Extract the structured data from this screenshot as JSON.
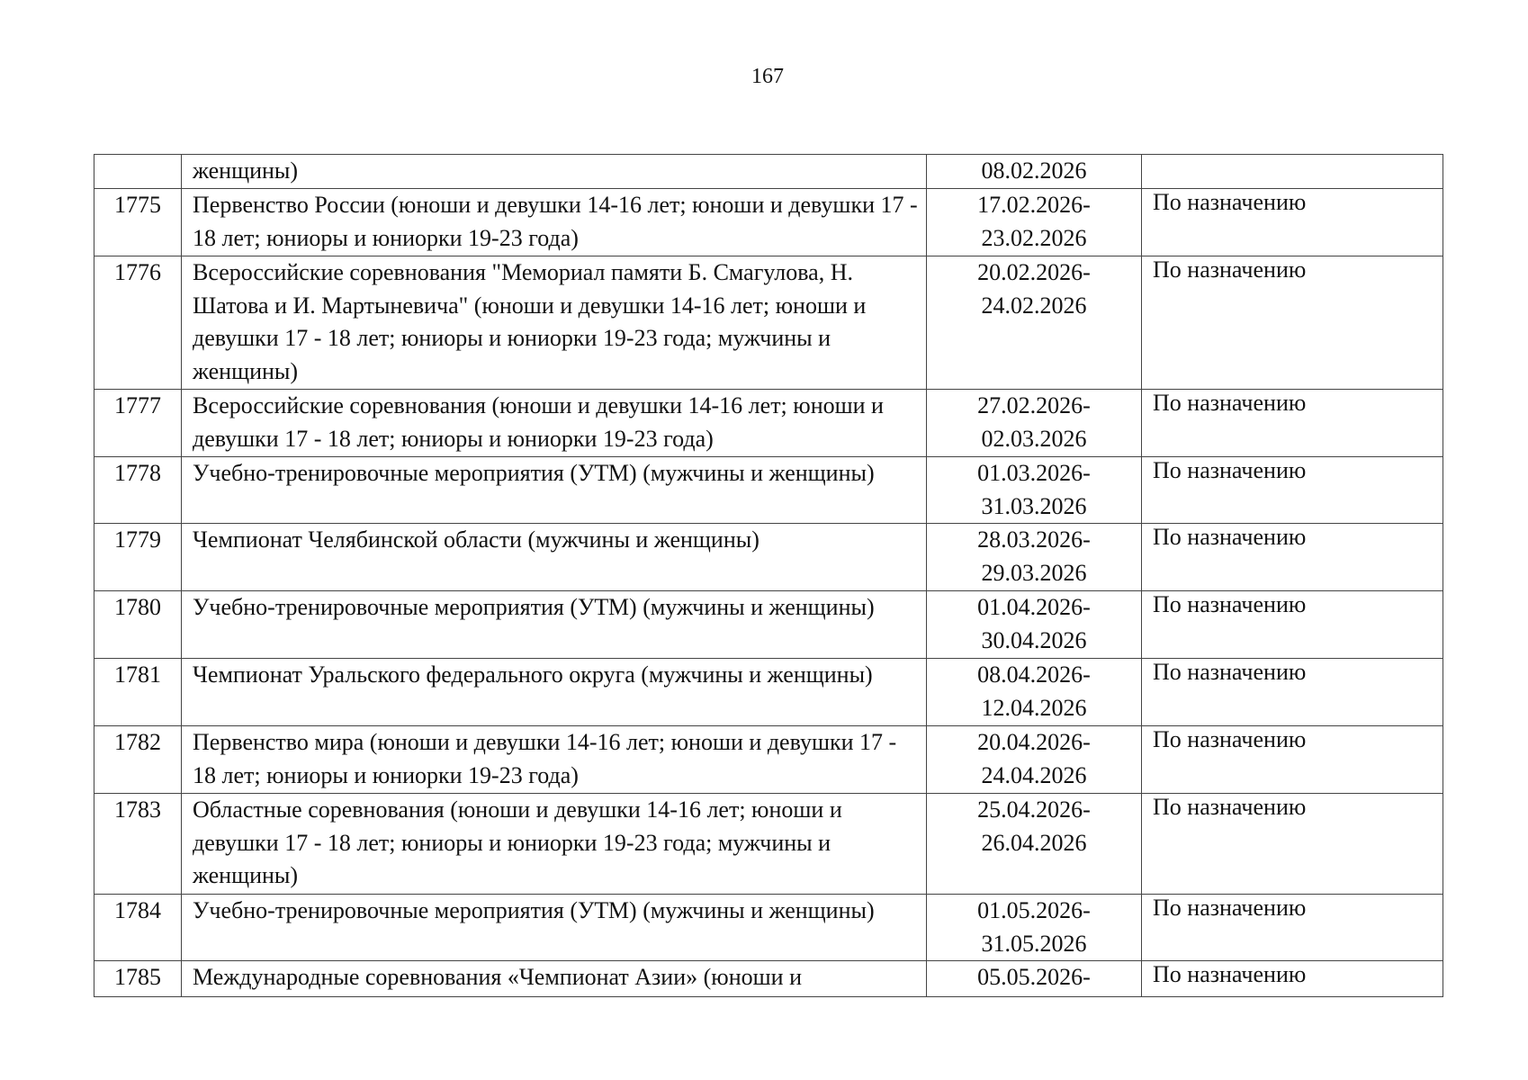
{
  "page_number": "167",
  "continuation_row": {
    "name": "женщины)",
    "date_end": "08.02.2026",
    "responsible": ""
  },
  "rows": [
    {
      "num": "1775",
      "name": "Первенство России (юноши и девушки 14-16 лет; юноши и девушки 17 - 18 лет; юниоры и юниорки 19-23 года)",
      "date_start": "17.02.2026-",
      "date_end": "23.02.2026",
      "responsible": "По назначению"
    },
    {
      "num": "1776",
      "name": "Всероссийские соревнования \"Мемориал памяти Б. Смагулова, Н. Шатова и И. Мартыневича\" (юноши и девушки 14-16 лет; юноши и девушки 17 - 18 лет; юниоры и юниорки 19-23 года; мужчины и женщины)",
      "date_start": "20.02.2026-",
      "date_end": "24.02.2026",
      "responsible": "По назначению"
    },
    {
      "num": "1777",
      "name": "Всероссийские соревнования (юноши и девушки 14-16 лет; юноши и девушки 17 - 18 лет; юниоры и юниорки 19-23 года)",
      "date_start": "27.02.2026-",
      "date_end": "02.03.2026",
      "responsible": "По назначению"
    },
    {
      "num": "1778",
      "name": "Учебно-тренировочные мероприятия (УТМ) (мужчины и женщины)",
      "date_start": "01.03.2026-",
      "date_end": "31.03.2026",
      "responsible": "По назначению"
    },
    {
      "num": "1779",
      "name": "Чемпионат Челябинской области (мужчины и женщины)",
      "date_start": "28.03.2026-",
      "date_end": "29.03.2026",
      "responsible": "По назначению"
    },
    {
      "num": "1780",
      "name": "Учебно-тренировочные мероприятия (УТМ) (мужчины и женщины)",
      "date_start": "01.04.2026-",
      "date_end": "30.04.2026",
      "responsible": "По назначению"
    },
    {
      "num": "1781",
      "name": "Чемпионат Уральского федерального округа (мужчины и женщины)",
      "date_start": "08.04.2026-",
      "date_end": "12.04.2026",
      "responsible": "По назначению"
    },
    {
      "num": "1782",
      "name": "Первенство мира (юноши и девушки 14-16 лет; юноши и девушки 17 - 18 лет; юниоры и юниорки 19-23 года)",
      "date_start": "20.04.2026-",
      "date_end": "24.04.2026",
      "responsible": "По назначению"
    },
    {
      "num": "1783",
      "name": "Областные соревнования (юноши и девушки 14-16 лет; юноши и девушки 17 - 18 лет; юниоры и юниорки 19-23 года; мужчины и женщины)",
      "date_start": "25.04.2026-",
      "date_end": "26.04.2026",
      "responsible": "По назначению"
    },
    {
      "num": "1784",
      "name": "Учебно-тренировочные мероприятия (УТМ) (мужчины и женщины)",
      "date_start": "01.05.2026-",
      "date_end": "31.05.2026",
      "responsible": "По назначению"
    },
    {
      "num": "1785",
      "name": "Международные соревнования «Чемпионат Азии» (юноши и",
      "date_start": "05.05.2026-",
      "date_end": "",
      "responsible": "По назначению"
    }
  ]
}
